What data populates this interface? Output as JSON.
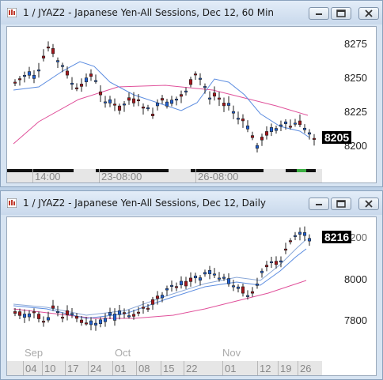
{
  "top": {
    "title": "1 / JYAZ2 - Japanese Yen-All Sessions, Dec 12, 60 Min",
    "price_labels": [
      "8275",
      "8250",
      "8225",
      "8200"
    ],
    "last_price": "8205",
    "time_labels": [
      "14:00",
      "23-08:00",
      "26-08:00"
    ]
  },
  "bottom": {
    "title": "1 / JYAZ2 - Japanese Yen-All Sessions, Dec 12, Daily",
    "price_labels": [
      "8200",
      "8000",
      "7800"
    ],
    "last_price": "8216",
    "month_labels": [
      "Sep",
      "Oct",
      "Nov"
    ],
    "day_labels": [
      "04",
      "10",
      "17",
      "24",
      "01",
      "08",
      "15",
      "22",
      "01",
      "12",
      "19",
      "26"
    ]
  },
  "window_buttons": {
    "minimize": "minimize-icon",
    "restore": "restore-icon",
    "close": "close-icon"
  },
  "colors": {
    "up": "#1f5fd1",
    "down": "#a3151b",
    "ma_fast": "#5b8ce0",
    "ma_slow": "#e0509a",
    "bg": "#ffffff",
    "frame": "#d7e4f2"
  }
}
